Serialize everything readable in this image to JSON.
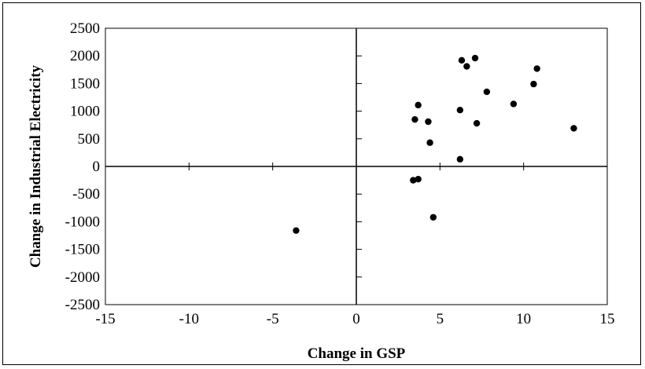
{
  "chart_data": {
    "type": "scatter",
    "xlabel": "Change in GSP",
    "ylabel": "Change in Industrial Electricity",
    "xlim": [
      -15,
      15
    ],
    "ylim": [
      -2500,
      2500
    ],
    "x_ticks": [
      -15,
      -10,
      -5,
      0,
      5,
      10,
      15
    ],
    "y_ticks": [
      2500,
      2000,
      1500,
      1000,
      500,
      0,
      -500,
      -1000,
      -1500,
      -2000,
      -2500
    ],
    "x_tick_labels": [
      "-15",
      "-10",
      "-5",
      "0",
      "5",
      "10",
      "15"
    ],
    "y_tick_labels": [
      "2500",
      "2000",
      "1500",
      "1000",
      "500",
      "0",
      "-500",
      "-1000",
      "-1500",
      "-2000",
      "-2500"
    ],
    "grid": false,
    "marker_color": "#000000",
    "points": [
      {
        "x": -3.6,
        "y": -1160
      },
      {
        "x": 3.4,
        "y": -250
      },
      {
        "x": 3.7,
        "y": -230
      },
      {
        "x": 3.5,
        "y": 850
      },
      {
        "x": 3.7,
        "y": 1110
      },
      {
        "x": 4.3,
        "y": 810
      },
      {
        "x": 4.4,
        "y": 430
      },
      {
        "x": 4.6,
        "y": -920
      },
      {
        "x": 6.2,
        "y": 1020
      },
      {
        "x": 6.2,
        "y": 130
      },
      {
        "x": 6.3,
        "y": 1920
      },
      {
        "x": 6.6,
        "y": 1810
      },
      {
        "x": 7.1,
        "y": 1960
      },
      {
        "x": 7.2,
        "y": 780
      },
      {
        "x": 7.8,
        "y": 1350
      },
      {
        "x": 9.4,
        "y": 1130
      },
      {
        "x": 10.6,
        "y": 1490
      },
      {
        "x": 10.8,
        "y": 1770
      },
      {
        "x": 13.0,
        "y": 690
      }
    ]
  }
}
